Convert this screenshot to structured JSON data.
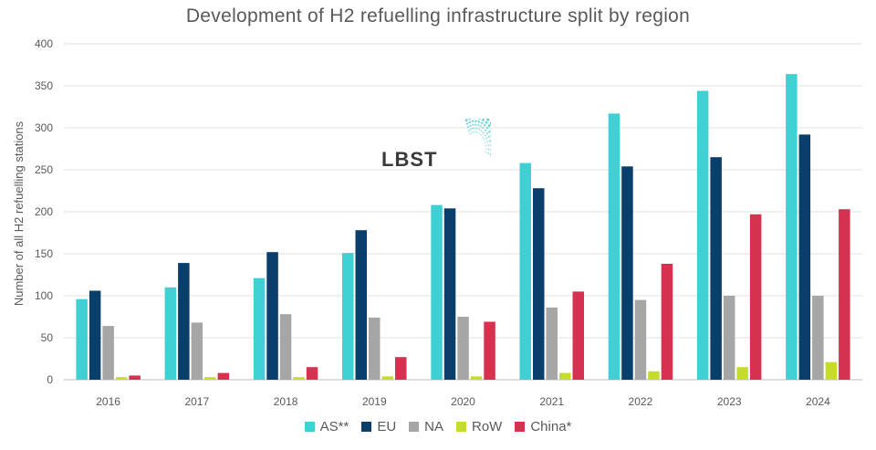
{
  "chart_data": {
    "type": "bar",
    "title": "Development of H2 refuelling infrastructure split by region",
    "xlabel": "",
    "ylabel": "Number of all H2 refuelling stations",
    "ylim": [
      0,
      400
    ],
    "yticks": [
      0,
      50,
      100,
      150,
      200,
      250,
      300,
      350,
      400
    ],
    "grid": true,
    "legend_position": "bottom",
    "categories": [
      "2016",
      "2017",
      "2018",
      "2019",
      "2020",
      "2021",
      "2022",
      "2023",
      "2024"
    ],
    "series": [
      {
        "name": "AS**",
        "color": "#3fd0d4",
        "values": [
          96,
          110,
          121,
          151,
          208,
          258,
          317,
          344,
          364
        ]
      },
      {
        "name": "EU",
        "color": "#0b3f6b",
        "values": [
          106,
          139,
          152,
          178,
          204,
          228,
          254,
          265,
          292
        ]
      },
      {
        "name": "NA",
        "color": "#a6a6a6",
        "values": [
          64,
          68,
          78,
          74,
          75,
          86,
          95,
          100,
          100
        ]
      },
      {
        "name": "RoW",
        "color": "#c5dc2a",
        "values": [
          3,
          3,
          3,
          4,
          4,
          8,
          10,
          15,
          21
        ]
      },
      {
        "name": "China*",
        "color": "#d6324f",
        "values": [
          5,
          8,
          15,
          27,
          69,
          105,
          138,
          197,
          203
        ]
      }
    ]
  },
  "logo": {
    "text": "LBST",
    "accent_color": "#3fc4cc"
  }
}
